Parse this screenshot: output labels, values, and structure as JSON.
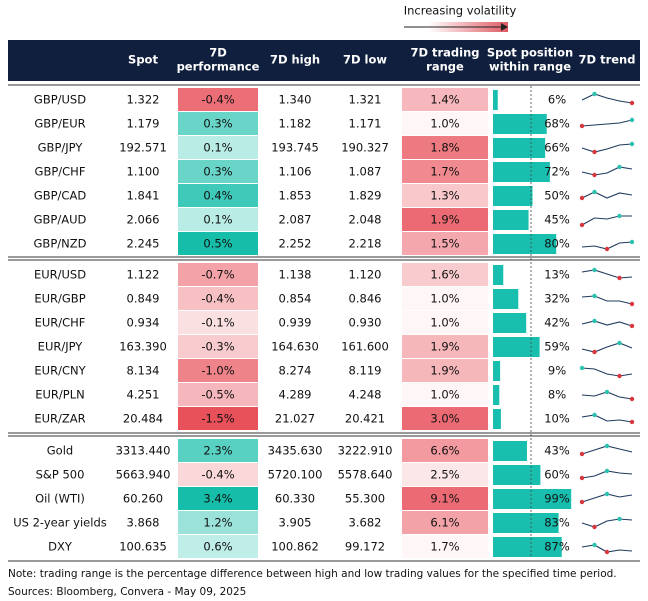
{
  "legend": "Increasing volatility",
  "header": [
    [
      ""
    ],
    [
      "Spot"
    ],
    [
      "7D",
      "performance"
    ],
    [
      "7D high"
    ],
    [
      "7D low"
    ],
    [
      "7D trading",
      "range"
    ],
    [
      "Spot position",
      "within range"
    ],
    [
      "7D trend"
    ]
  ],
  "groups": [
    {
      "rows": [
        [
          "GBP/USD",
          "1.322",
          "-0.4%",
          "1.340",
          "1.321",
          "1.4%",
          "6%"
        ],
        [
          "GBP/EUR",
          "1.179",
          "0.3%",
          "1.182",
          "1.171",
          "1.0%",
          "68%"
        ],
        [
          "GBP/JPY",
          "192.571",
          "0.1%",
          "193.745",
          "190.327",
          "1.8%",
          "66%"
        ],
        [
          "GBP/CHF",
          "1.100",
          "0.3%",
          "1.106",
          "1.087",
          "1.7%",
          "72%"
        ],
        [
          "GBP/CAD",
          "1.841",
          "0.4%",
          "1.853",
          "1.829",
          "1.3%",
          "50%"
        ],
        [
          "GBP/AUD",
          "2.066",
          "0.1%",
          "2.087",
          "2.048",
          "1.9%",
          "45%"
        ],
        [
          "GBP/NZD",
          "2.245",
          "0.5%",
          "2.252",
          "2.218",
          "1.5%",
          "80%"
        ]
      ]
    },
    {
      "rows": [
        [
          "EUR/USD",
          "1.122",
          "-0.7%",
          "1.138",
          "1.120",
          "1.6%",
          "13%"
        ],
        [
          "EUR/GBP",
          "0.849",
          "-0.4%",
          "0.854",
          "0.846",
          "1.0%",
          "32%"
        ],
        [
          "EUR/CHF",
          "0.934",
          "-0.1%",
          "0.939",
          "0.930",
          "1.0%",
          "42%"
        ],
        [
          "EUR/JPY",
          "163.390",
          "-0.3%",
          "164.630",
          "161.600",
          "1.9%",
          "59%"
        ],
        [
          "EUR/CNY",
          "8.134",
          "-1.0%",
          "8.274",
          "8.119",
          "1.9%",
          "9%"
        ],
        [
          "EUR/PLN",
          "4.251",
          "-0.5%",
          "4.289",
          "4.248",
          "1.0%",
          "8%"
        ],
        [
          "EUR/ZAR",
          "20.484",
          "-1.5%",
          "21.027",
          "20.421",
          "3.0%",
          "10%"
        ]
      ]
    },
    {
      "rows": [
        [
          "Gold",
          "3313.440",
          "2.3%",
          "3435.630",
          "3222.910",
          "6.6%",
          "43%"
        ],
        [
          "S&P 500",
          "5663.940",
          "-0.4%",
          "5720.100",
          "5578.640",
          "2.5%",
          "60%"
        ],
        [
          "Oil (WTI)",
          "60.260",
          "3.4%",
          "60.330",
          "55.300",
          "9.1%",
          "99%"
        ],
        [
          "US 2-year yields",
          "3.868",
          "1.2%",
          "3.905",
          "3.682",
          "6.1%",
          "83%"
        ],
        [
          "DXY",
          "100.635",
          "0.6%",
          "100.862",
          "99.172",
          "1.7%",
          "87%"
        ]
      ]
    }
  ],
  "note": "Note: trading range is the percentage difference between high and low trading values for the specified time period.",
  "sources": "Sources: Bloomberg, Convera - May 09, 2025"
}
